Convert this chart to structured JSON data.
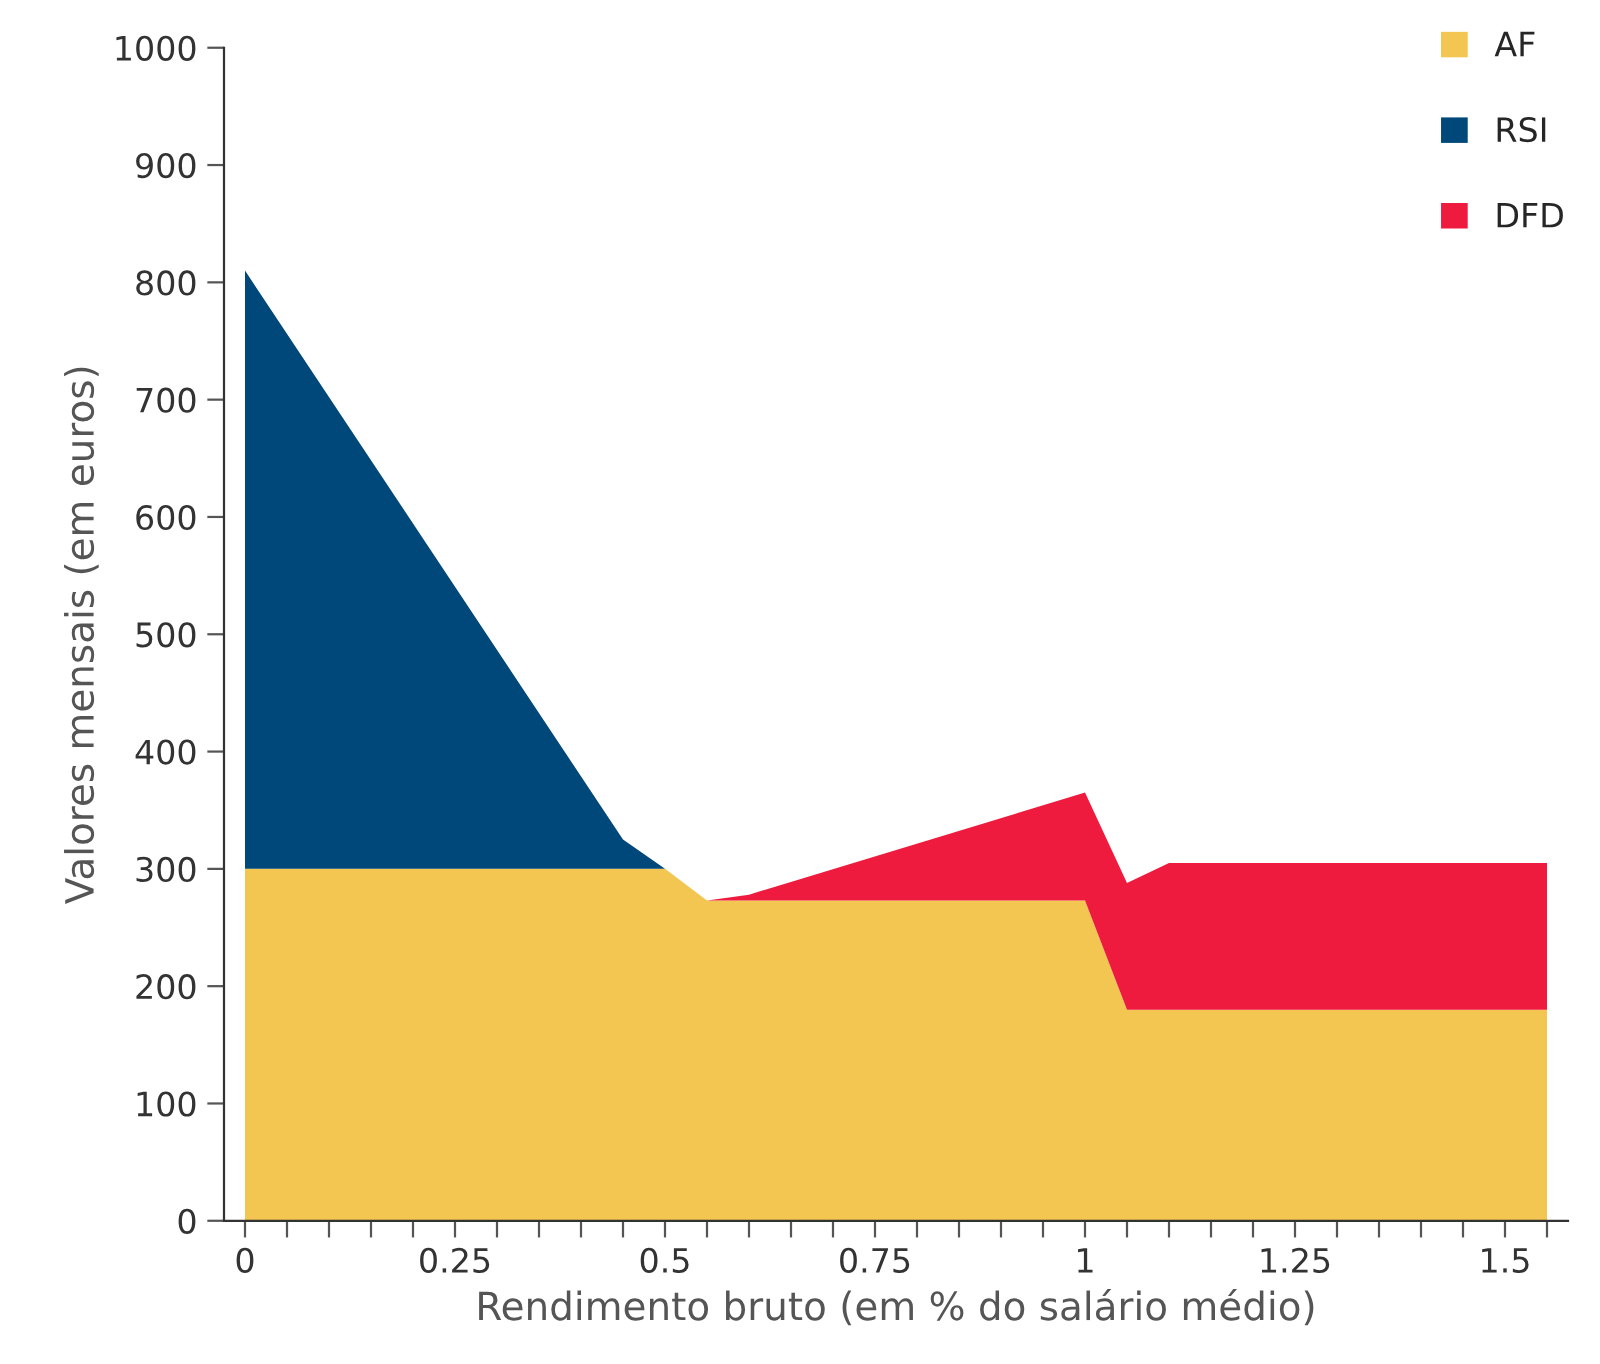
{
  "chart_data": {
    "type": "area",
    "stacked": true,
    "xlabel": "Rendimento bruto (em % do salário médio)",
    "ylabel": "Valores mensais (em euros)",
    "x": [
      0,
      0.45,
      0.5,
      0.55,
      0.6,
      1.0,
      1.05,
      1.1,
      1.55
    ],
    "series": [
      {
        "name": "AF",
        "color": "#f2c651",
        "values": [
          300,
          300,
          300,
          273,
          273,
          273,
          180,
          180,
          180
        ]
      },
      {
        "name": "RSI",
        "color": "#00477a",
        "values": [
          510,
          25,
          0,
          null,
          null,
          null,
          null,
          null,
          null
        ]
      },
      {
        "name": "DFD",
        "color": "#ee1b3e",
        "values": [
          null,
          null,
          null,
          0,
          5,
          92,
          108,
          125,
          125
        ]
      }
    ],
    "xlim": [
      -0.025,
      1.575
    ],
    "ylim": [
      0,
      1000
    ],
    "xticks": [
      0,
      {
        "value": 0.05,
        "label": null
      },
      {
        "value": 0.1,
        "label": null
      },
      {
        "value": 0.15,
        "label": null
      },
      {
        "value": 0.2,
        "label": null
      },
      0.25,
      {
        "value": 0.3,
        "label": null
      },
      {
        "value": 0.35,
        "label": null
      },
      {
        "value": 0.4,
        "label": null
      },
      {
        "value": 0.45,
        "label": null
      },
      0.5,
      {
        "value": 0.55,
        "label": null
      },
      {
        "value": 0.6,
        "label": null
      },
      {
        "value": 0.65,
        "label": null
      },
      {
        "value": 0.7,
        "label": null
      },
      0.75,
      {
        "value": 0.8,
        "label": null
      },
      {
        "value": 0.85,
        "label": null
      },
      {
        "value": 0.9,
        "label": null
      },
      {
        "value": 0.95,
        "label": null
      },
      1,
      {
        "value": 1.05,
        "label": null
      },
      {
        "value": 1.1,
        "label": null
      },
      {
        "value": 1.15,
        "label": null
      },
      {
        "value": 1.2,
        "label": null
      },
      1.25,
      {
        "value": 1.3,
        "label": null
      },
      {
        "value": 1.35,
        "label": null
      },
      {
        "value": 1.4,
        "label": null
      },
      {
        "value": 1.45,
        "label": null
      },
      1.5,
      {
        "value": 1.55,
        "label": null
      }
    ],
    "yticks": [
      0,
      100,
      200,
      300,
      400,
      500,
      600,
      700,
      800,
      900,
      1000
    ],
    "legend": "top right",
    "grid": false
  }
}
